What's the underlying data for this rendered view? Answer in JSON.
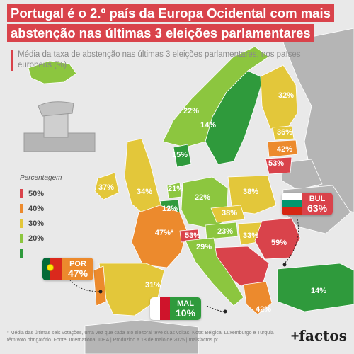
{
  "title": {
    "line1": "Portugal é o 2.º país da Europa Ocidental com mais",
    "line2": "abstenção nas últimas 3 eleições parlamentares"
  },
  "subtitle": "Média da taxa de abstenção nas últimas 3 eleições parlamentares, nos países europeus (%)",
  "legend": {
    "title": "Percentagem",
    "items": [
      {
        "label": "50%",
        "color": "#d9434b"
      },
      {
        "label": "40%",
        "color": "#ec8a2d"
      },
      {
        "label": "30%",
        "color": "#e3c73a"
      },
      {
        "label": "20%",
        "color": "#8cc63f"
      },
      {
        "label": "",
        "color": "#2f9a3c"
      }
    ]
  },
  "colors": {
    "red": "#d9434b",
    "orange": "#ec8a2d",
    "yellow": "#e3c73a",
    "lime": "#8cc63f",
    "green": "#2f9a3c",
    "grey": "#b5b5b5",
    "sea": "#e9e9e9"
  },
  "countries": [
    {
      "name": "Norway",
      "value": "22%"
    },
    {
      "name": "Sweden",
      "value": "14%"
    },
    {
      "name": "Finland",
      "value": "32%"
    },
    {
      "name": "Estonia",
      "value": "36%"
    },
    {
      "name": "Latvia",
      "value": "42%"
    },
    {
      "name": "Lithuania",
      "value": "53%"
    },
    {
      "name": "Denmark",
      "value": "15%"
    },
    {
      "name": "Ireland",
      "value": "37%"
    },
    {
      "name": "United Kingdom",
      "value": "34%"
    },
    {
      "name": "Netherlands",
      "value": "21%"
    },
    {
      "name": "Belgium",
      "value": "12%"
    },
    {
      "name": "Germany",
      "value": "22%"
    },
    {
      "name": "Poland",
      "value": "38%"
    },
    {
      "name": "Czechia",
      "value": "38%"
    },
    {
      "name": "France",
      "value": "47%*"
    },
    {
      "name": "Switzerland",
      "value": "53%"
    },
    {
      "name": "Austria",
      "value": "23%"
    },
    {
      "name": "Hungary",
      "value": "33%"
    },
    {
      "name": "Italy",
      "value": "29%"
    },
    {
      "name": "Romania",
      "value": "59%"
    },
    {
      "name": "Spain",
      "value": "31%"
    },
    {
      "name": "Turkey",
      "value": "14%"
    },
    {
      "name": "Greece",
      "value": "42%"
    }
  ],
  "callouts": {
    "bul": {
      "code": "BUL",
      "value": "63%"
    },
    "por": {
      "code": "POR",
      "value": "47%"
    },
    "mal": {
      "code": "MAL",
      "value": "10%"
    }
  },
  "footnote": "* Média das últimas seis votações, uma vez que cada ato eleitoral teve duas voltas. Nota: Bélgica, Luxemburgo e Turquia têm voto obrigatório. Fonte: International IDEA | Produzido a 18 de maio de 2025 | maisfactos.pt",
  "brand": {
    "plus": "+",
    "name": "factos"
  }
}
